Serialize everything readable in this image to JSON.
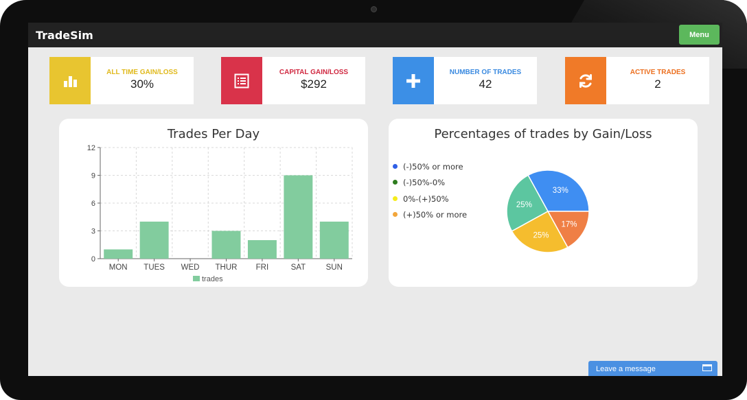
{
  "app": {
    "brand": "TradeSim",
    "menu_label": "Menu"
  },
  "stats": [
    {
      "label": "ALL TIME GAIN/LOSS",
      "value": "30%",
      "color": "#e8c530",
      "icon": "bar-chart-icon"
    },
    {
      "label": "CAPITAL GAIN/LOSS",
      "value": "$292",
      "color": "#d9334a",
      "icon": "list-icon"
    },
    {
      "label": "NUMBER OF TRADES",
      "value": "42",
      "color": "#3c8fe6",
      "icon": "plus-icon"
    },
    {
      "label": "ACTIVE TRADES",
      "value": "2",
      "color": "#f07a28",
      "icon": "refresh-icon"
    }
  ],
  "trades_chart": {
    "title": "Trades Per Day",
    "legend": "trades",
    "color": "#82cc9e"
  },
  "pie_chart": {
    "title": "Percentages of trades by Gain/Loss",
    "legend": [
      {
        "label": "(-)50% or more",
        "color": "#2f5fe6"
      },
      {
        "label": "(-)50%-0%",
        "color": "#2e7d1f"
      },
      {
        "label": "0%-(+)50%",
        "color": "#f5ec1c"
      },
      {
        "label": "(+)50% or more",
        "color": "#f2a63c"
      }
    ]
  },
  "chart_data": [
    {
      "type": "bar",
      "title": "Trades Per Day",
      "categories": [
        "MON",
        "TUES",
        "WED",
        "THUR",
        "FRI",
        "SAT",
        "SUN"
      ],
      "series": [
        {
          "name": "trades",
          "values": [
            1,
            4,
            0,
            3,
            2,
            9,
            4
          ]
        }
      ],
      "ylim": [
        0,
        12
      ],
      "yticks": [
        0,
        3,
        6,
        9,
        12
      ],
      "grid": true,
      "legend_position": "bottom"
    },
    {
      "type": "pie",
      "title": "Percentages of trades by Gain/Loss",
      "slices": [
        {
          "label": "33%",
          "value": 33,
          "color": "#3f8ef2"
        },
        {
          "label": "17%",
          "value": 17,
          "color": "#ef7f45"
        },
        {
          "label": "25%",
          "value": 25,
          "color": "#f5bd2e"
        },
        {
          "label": "25%",
          "value": 25,
          "color": "#5cc6a0"
        }
      ],
      "legend_position": "left"
    }
  ],
  "chat": {
    "label": "Leave a message"
  }
}
